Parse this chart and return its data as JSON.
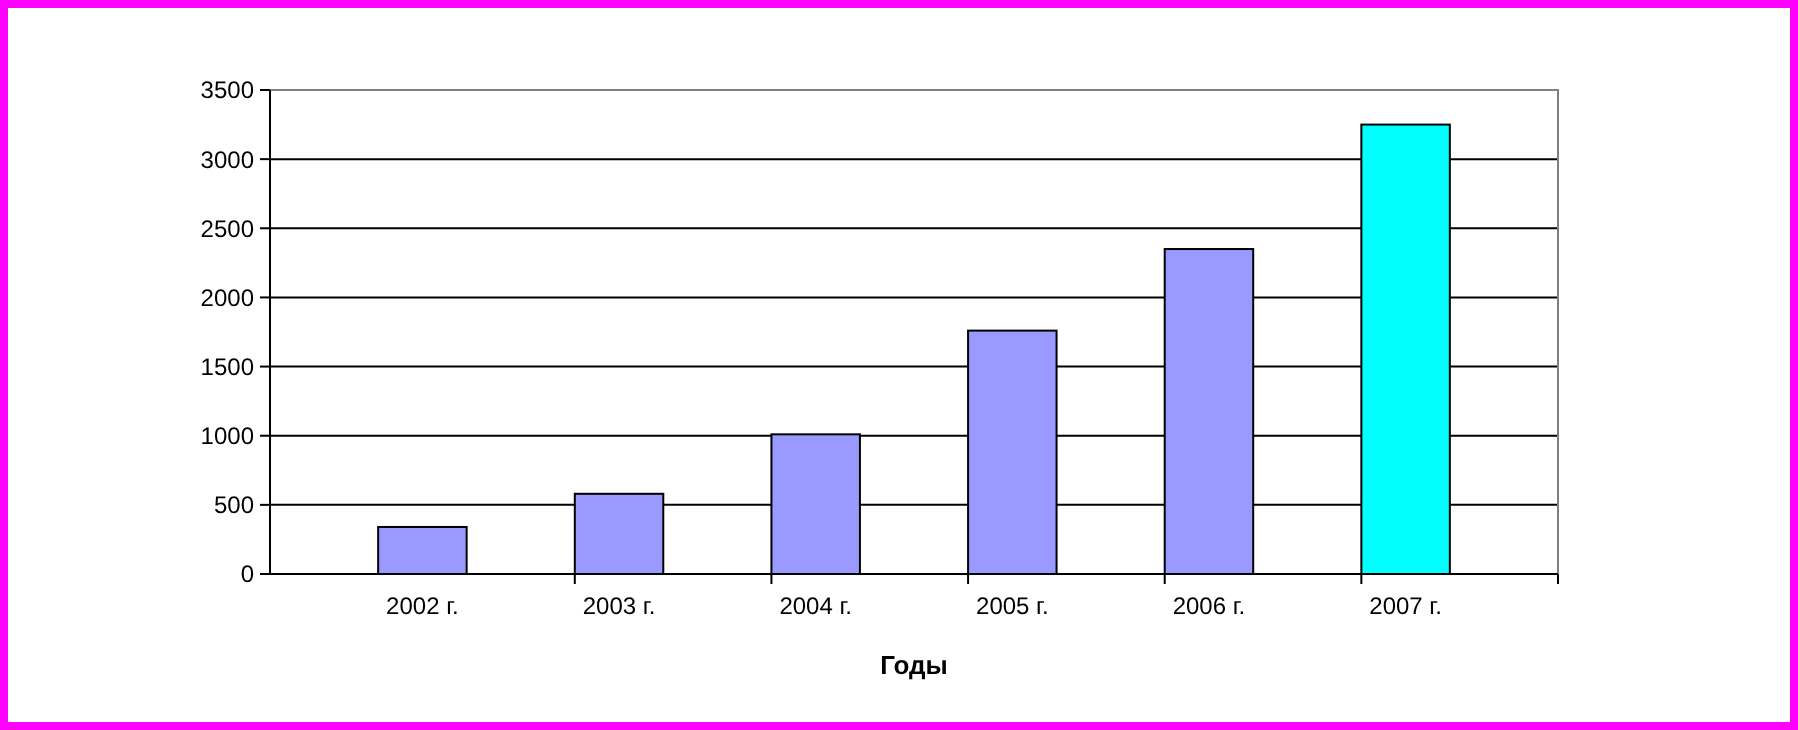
{
  "chart_data": {
    "type": "bar",
    "xlabel": "Годы",
    "categories": [
      "2002 г.",
      "2003 г.",
      "2004 г.",
      "2005 г.",
      "2006 г.",
      "2007 г."
    ],
    "values": [
      340,
      580,
      1010,
      1760,
      2350,
      3250
    ],
    "colors": [
      "#9999ff",
      "#9999ff",
      "#9999ff",
      "#9999ff",
      "#9999ff",
      "#00ffff"
    ],
    "ylim": [
      0,
      3500
    ],
    "yticks": [
      0,
      500,
      1000,
      1500,
      2000,
      2500,
      3000,
      3500
    ],
    "grid": "y"
  }
}
